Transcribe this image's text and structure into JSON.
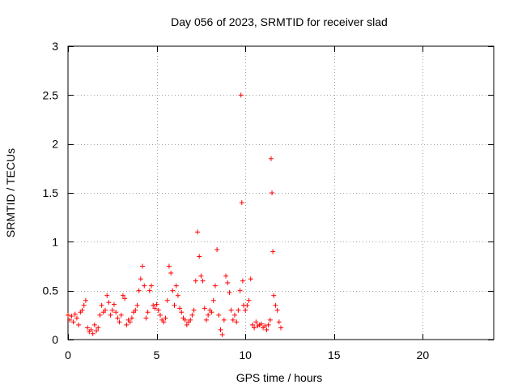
{
  "chart_data": {
    "type": "scatter",
    "title": "Day 056 of 2023, SRMTID for receiver slad",
    "xlabel": "GPS time / hours",
    "ylabel": "SRMTID / TECUs",
    "xlim": [
      0,
      24
    ],
    "ylim": [
      0,
      3
    ],
    "xticks": [
      0,
      5,
      10,
      15,
      20
    ],
    "xtick_labels": [
      "0",
      "5",
      "10",
      "15",
      "20"
    ],
    "yticks": [
      0,
      0.5,
      1,
      1.5,
      2,
      2.5,
      3
    ],
    "ytick_labels": [
      "0",
      "0.5",
      "1",
      "1.5",
      "2",
      "2.5",
      "3"
    ],
    "grid": true,
    "marker": "+",
    "color": "#ff0000",
    "series": [
      {
        "name": "SRMTID",
        "x": [
          0.0,
          0.1,
          0.2,
          0.3,
          0.4,
          0.5,
          0.6,
          0.7,
          0.8,
          0.9,
          1.0,
          1.1,
          1.2,
          1.3,
          1.4,
          1.5,
          1.6,
          1.7,
          1.8,
          1.9,
          2.0,
          2.1,
          2.2,
          2.3,
          2.4,
          2.5,
          2.6,
          2.7,
          2.8,
          2.9,
          3.0,
          3.1,
          3.2,
          3.3,
          3.4,
          3.5,
          3.6,
          3.7,
          3.8,
          3.9,
          4.0,
          4.1,
          4.2,
          4.3,
          4.4,
          4.5,
          4.6,
          4.7,
          4.8,
          4.9,
          5.0,
          5.1,
          5.2,
          5.3,
          5.4,
          5.5,
          5.6,
          5.7,
          5.8,
          5.9,
          6.0,
          6.1,
          6.2,
          6.3,
          6.4,
          6.5,
          6.6,
          6.7,
          6.8,
          6.9,
          7.0,
          7.1,
          7.2,
          7.3,
          7.4,
          7.5,
          7.6,
          7.7,
          7.8,
          7.9,
          8.0,
          8.1,
          8.2,
          8.3,
          8.4,
          8.5,
          8.6,
          8.7,
          8.8,
          8.9,
          9.0,
          9.1,
          9.2,
          9.3,
          9.4,
          9.5,
          9.6,
          9.7,
          9.75,
          9.8,
          9.85,
          9.9,
          10.0,
          10.1,
          10.2,
          10.3,
          10.4,
          10.5,
          10.6,
          10.7,
          10.8,
          10.9,
          11.0,
          11.1,
          11.2,
          11.3,
          11.4,
          11.45,
          11.5,
          11.55,
          11.6,
          11.7,
          11.8,
          11.9,
          12.0
        ],
        "y": [
          0.25,
          0.2,
          0.24,
          0.18,
          0.26,
          0.22,
          0.15,
          0.28,
          0.3,
          0.35,
          0.4,
          0.12,
          0.08,
          0.1,
          0.06,
          0.15,
          0.09,
          0.12,
          0.25,
          0.35,
          0.28,
          0.3,
          0.45,
          0.38,
          0.25,
          0.3,
          0.36,
          0.28,
          0.22,
          0.18,
          0.25,
          0.45,
          0.42,
          0.15,
          0.2,
          0.18,
          0.22,
          0.28,
          0.3,
          0.35,
          0.5,
          0.62,
          0.75,
          0.55,
          0.22,
          0.28,
          0.5,
          0.55,
          0.35,
          0.32,
          0.36,
          0.3,
          0.25,
          0.2,
          0.18,
          0.22,
          0.4,
          0.75,
          0.68,
          0.5,
          0.35,
          0.55,
          0.45,
          0.32,
          0.28,
          0.22,
          0.2,
          0.15,
          0.18,
          0.2,
          0.25,
          0.3,
          0.6,
          1.1,
          0.85,
          0.65,
          0.6,
          0.32,
          0.2,
          0.25,
          0.3,
          0.28,
          0.4,
          0.55,
          0.92,
          0.25,
          0.1,
          0.05,
          0.2,
          0.65,
          0.58,
          0.48,
          0.3,
          0.2,
          0.25,
          0.18,
          0.3,
          0.5,
          2.5,
          1.4,
          0.6,
          0.35,
          0.3,
          0.35,
          0.4,
          0.62,
          0.15,
          0.12,
          0.18,
          0.14,
          0.15,
          0.16,
          0.12,
          0.14,
          0.1,
          0.15,
          0.2,
          1.85,
          1.5,
          0.9,
          0.45,
          0.35,
          0.3,
          0.18,
          0.12
        ]
      }
    ]
  }
}
